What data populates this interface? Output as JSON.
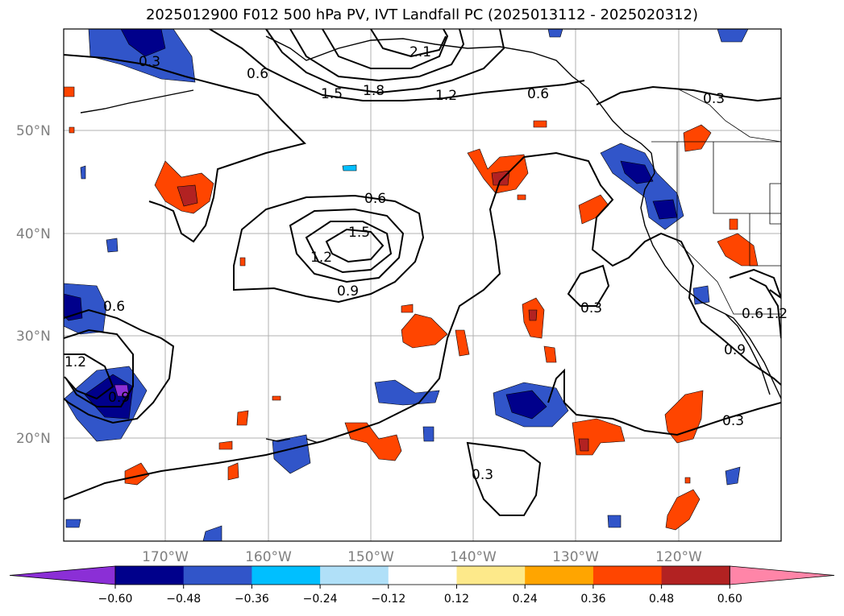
{
  "title": "2025012900 F012 500 hPa PV, IVT Landfall PC (2025013112 - 2025020312)",
  "map": {
    "lat_labels": [
      "50°N",
      "40°N",
      "30°N",
      "20°N"
    ],
    "lon_labels": [
      "170°W",
      "160°W",
      "150°W",
      "140°W",
      "130°W",
      "120°W"
    ]
  },
  "contour_labels": [
    "0.3",
    "0.6",
    "1.5",
    "1.8",
    "2.1",
    "1.2",
    "0.6",
    "0.3",
    "0.6",
    "1.5",
    "1.2",
    "0.9",
    "0.6",
    "1.2",
    "0.9",
    "0.3",
    "0.3",
    "0.3",
    "0.9",
    "0.6",
    "1.2"
  ],
  "colorbar": {
    "ticks": [
      "−0.60",
      "−0.48",
      "−0.36",
      "−0.24",
      "−0.12",
      "0.12",
      "0.24",
      "0.36",
      "0.48",
      "0.60"
    ],
    "colors": [
      "#8b2fd6",
      "#00008b",
      "#3155c9",
      "#00bfff",
      "#b0e0f8",
      "#ffffff",
      "#fde98a",
      "#ffa500",
      "#ff4500",
      "#b22222",
      "#ff85a8"
    ]
  }
}
